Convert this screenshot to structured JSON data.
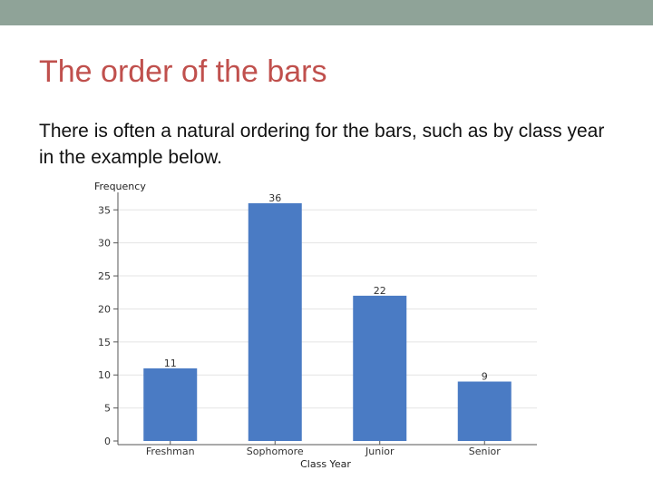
{
  "slide": {
    "title": "The order of the bars",
    "body": "There is often a natural ordering for the bars, such as by class year in the example below."
  },
  "colors": {
    "title": "#c0504d",
    "bar": "#4a7bc4",
    "top_band": "#8fa398"
  },
  "chart_data": {
    "type": "bar",
    "categories": [
      "Freshman",
      "Sophomore",
      "Junior",
      "Senior"
    ],
    "values": [
      11,
      36,
      22,
      9
    ],
    "data_labels": [
      "11",
      "36",
      "22",
      "9"
    ],
    "title": "",
    "xlabel": "Class Year",
    "ylabel": "Frequency",
    "ylim": [
      0,
      36
    ],
    "yticks": [
      0,
      5,
      10,
      15,
      20,
      25,
      30,
      35
    ],
    "grid": true
  }
}
